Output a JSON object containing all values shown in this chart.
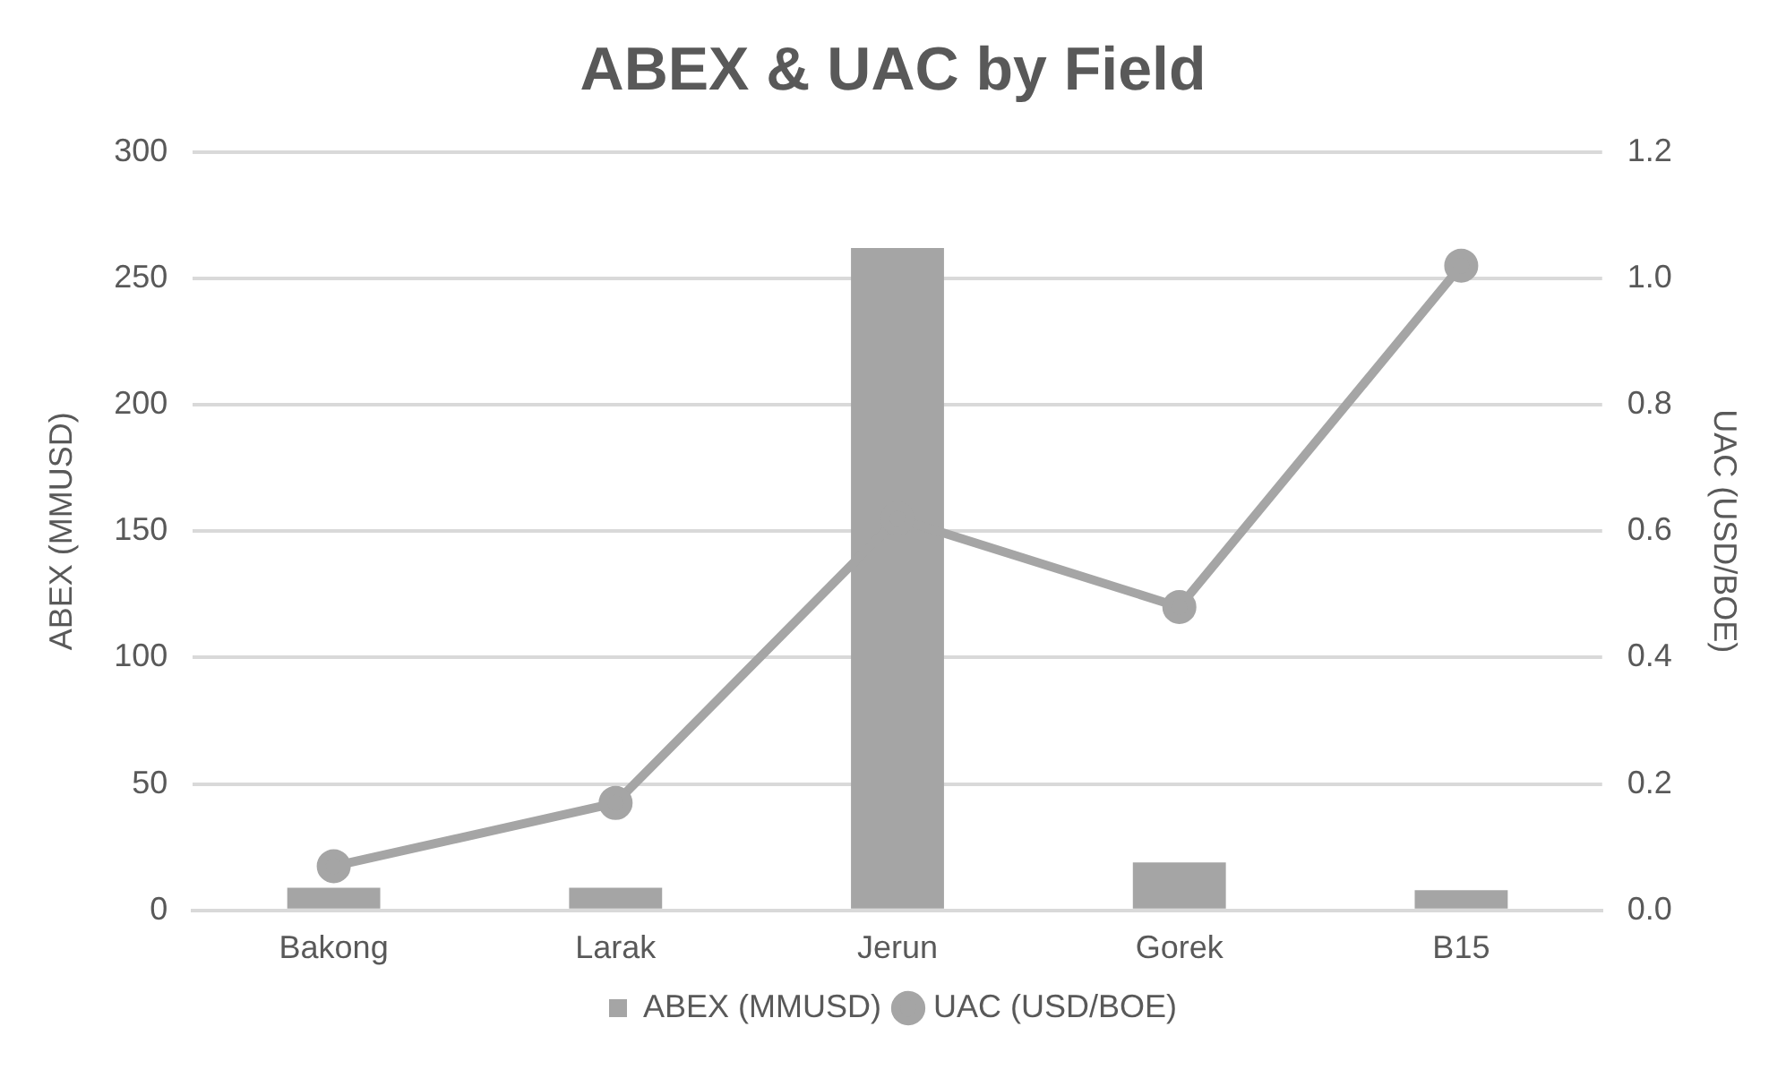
{
  "chart_data": {
    "type": "bar",
    "title": "ABEX & UAC by Field",
    "ylabel": "ABEX (MMUSD)",
    "y2label": "UAC (USD/BOE)",
    "categories": [
      "Bakong",
      "Larak",
      "Jerun",
      "Gorek",
      "B15"
    ],
    "series": [
      {
        "name": "ABEX (MMUSD)",
        "color": "#a5a5a5",
        "values": [
          9,
          9,
          262,
          19,
          8
        ]
      },
      {
        "name": "UAC (USD/BOE)",
        "type": "line",
        "axis": "y2",
        "color": "#a5a5a5",
        "values": [
          0.07,
          0.17,
          0.62,
          0.48,
          1.02
        ]
      }
    ],
    "ylim": [
      0,
      300
    ],
    "yticks": [
      0,
      50,
      100,
      150,
      200,
      250,
      300
    ],
    "y2lim": [
      0,
      1.2
    ],
    "y2ticks": [
      {
        "value": 0,
        "label": "0.0"
      },
      {
        "value": 0.2,
        "label": "0.2"
      },
      {
        "value": 0.4,
        "label": "0.4"
      },
      {
        "value": 0.6,
        "label": "0.6"
      },
      {
        "value": 0.8,
        "label": "0.8"
      },
      {
        "value": 1,
        "label": "1.0"
      },
      {
        "value": 1.2,
        "label": "1.2"
      }
    ],
    "grid": "y",
    "legend": "bottom",
    "marker": "circle"
  }
}
